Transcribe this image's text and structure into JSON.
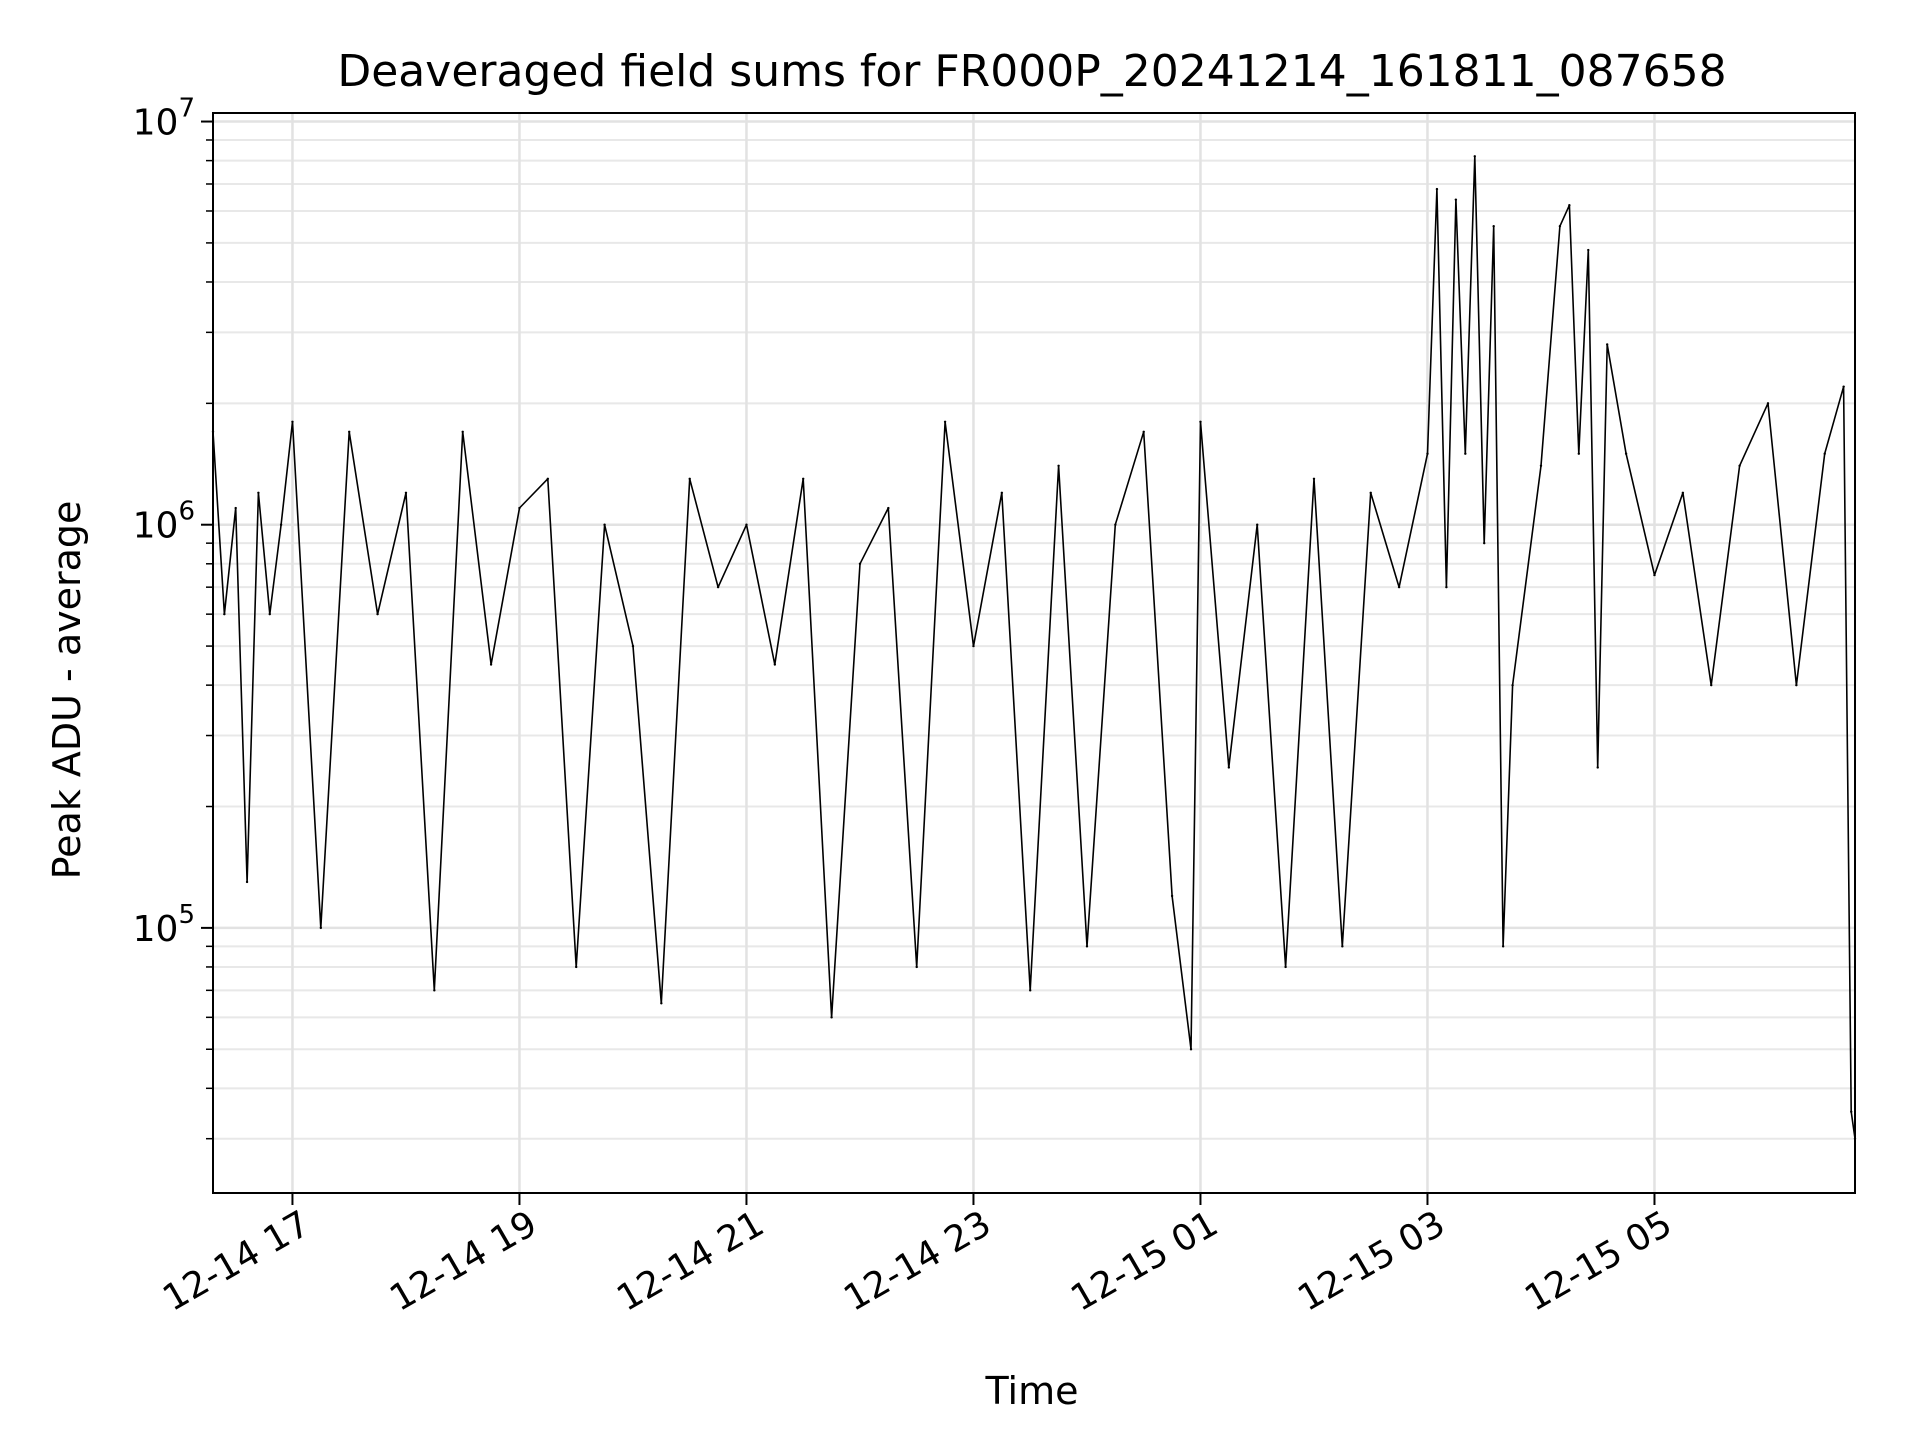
{
  "chart_data": {
    "type": "line",
    "title": "Deaveraged field sums for FR000P_20241214_161811_087658",
    "xlabel": "Time",
    "ylabel": "Peak ADU - average",
    "y_scale": "log",
    "ylim": [
      22000,
      10500000
    ],
    "xlim": [
      "2024-12-14 16:18",
      "2024-12-15 06:46"
    ],
    "x_ticks": [
      {
        "value": "2024-12-14 17:00",
        "label": "12-14 17"
      },
      {
        "value": "2024-12-14 19:00",
        "label": "12-14 19"
      },
      {
        "value": "2024-12-14 21:00",
        "label": "12-14 21"
      },
      {
        "value": "2024-12-14 23:00",
        "label": "12-14 23"
      },
      {
        "value": "2024-12-15 01:00",
        "label": "12-15 01"
      },
      {
        "value": "2024-12-15 03:00",
        "label": "12-15 03"
      },
      {
        "value": "2024-12-15 05:00",
        "label": "12-15 05"
      }
    ],
    "y_ticks": [
      {
        "value": 100000,
        "base": "10",
        "exp": "5"
      },
      {
        "value": 1000000,
        "base": "10",
        "exp": "6"
      },
      {
        "value": 10000000,
        "base": "10",
        "exp": "7"
      }
    ],
    "grid": true,
    "line_color": "#000000",
    "series": [
      {
        "name": "",
        "x": [
          "2024-12-14 16:18",
          "2024-12-14 16:24",
          "2024-12-14 16:30",
          "2024-12-14 16:36",
          "2024-12-14 16:42",
          "2024-12-14 16:48",
          "2024-12-14 16:54",
          "2024-12-14 17:00",
          "2024-12-14 17:15",
          "2024-12-14 17:30",
          "2024-12-14 17:45",
          "2024-12-14 18:00",
          "2024-12-14 18:15",
          "2024-12-14 18:30",
          "2024-12-14 18:45",
          "2024-12-14 19:00",
          "2024-12-14 19:15",
          "2024-12-14 19:30",
          "2024-12-14 19:45",
          "2024-12-14 20:00",
          "2024-12-14 20:15",
          "2024-12-14 20:30",
          "2024-12-14 20:45",
          "2024-12-14 21:00",
          "2024-12-14 21:15",
          "2024-12-14 21:30",
          "2024-12-14 21:45",
          "2024-12-14 22:00",
          "2024-12-14 22:15",
          "2024-12-14 22:30",
          "2024-12-14 22:45",
          "2024-12-14 23:00",
          "2024-12-14 23:15",
          "2024-12-14 23:30",
          "2024-12-14 23:45",
          "2024-12-15 00:00",
          "2024-12-15 00:15",
          "2024-12-15 00:30",
          "2024-12-15 00:45",
          "2024-12-15 00:55",
          "2024-12-15 01:00",
          "2024-12-15 01:15",
          "2024-12-15 01:30",
          "2024-12-15 01:45",
          "2024-12-15 02:00",
          "2024-12-15 02:15",
          "2024-12-15 02:30",
          "2024-12-15 02:45",
          "2024-12-15 03:00",
          "2024-12-15 03:05",
          "2024-12-15 03:10",
          "2024-12-15 03:15",
          "2024-12-15 03:20",
          "2024-12-15 03:25",
          "2024-12-15 03:30",
          "2024-12-15 03:35",
          "2024-12-15 03:40",
          "2024-12-15 03:45",
          "2024-12-15 04:00",
          "2024-12-15 04:10",
          "2024-12-15 04:15",
          "2024-12-15 04:20",
          "2024-12-15 04:25",
          "2024-12-15 04:30",
          "2024-12-15 04:35",
          "2024-12-15 04:45",
          "2024-12-15 05:00",
          "2024-12-15 05:15",
          "2024-12-15 05:30",
          "2024-12-15 05:45",
          "2024-12-15 06:00",
          "2024-12-15 06:15",
          "2024-12-15 06:30",
          "2024-12-15 06:40",
          "2024-12-15 06:44",
          "2024-12-15 06:46"
        ],
        "y": [
          1700000,
          600000,
          1100000,
          130000,
          1200000,
          600000,
          1000000,
          1800000,
          100000,
          1700000,
          600000,
          1200000,
          70000,
          1700000,
          450000,
          1100000,
          1300000,
          80000,
          1000000,
          500000,
          65000,
          1300000,
          700000,
          1000000,
          450000,
          1300000,
          60000,
          800000,
          1100000,
          80000,
          1800000,
          500000,
          1200000,
          70000,
          1400000,
          90000,
          1000000,
          1700000,
          120000,
          50000,
          1800000,
          250000,
          1000000,
          80000,
          1300000,
          90000,
          1200000,
          700000,
          1500000,
          6800000,
          700000,
          6400000,
          1500000,
          8200000,
          900000,
          5500000,
          90000,
          400000,
          1400000,
          5500000,
          6200000,
          1500000,
          4800000,
          250000,
          2800000,
          1500000,
          750000,
          1200000,
          400000,
          1400000,
          2000000,
          400000,
          1500000,
          2200000,
          35000,
          30000
        ]
      }
    ]
  }
}
